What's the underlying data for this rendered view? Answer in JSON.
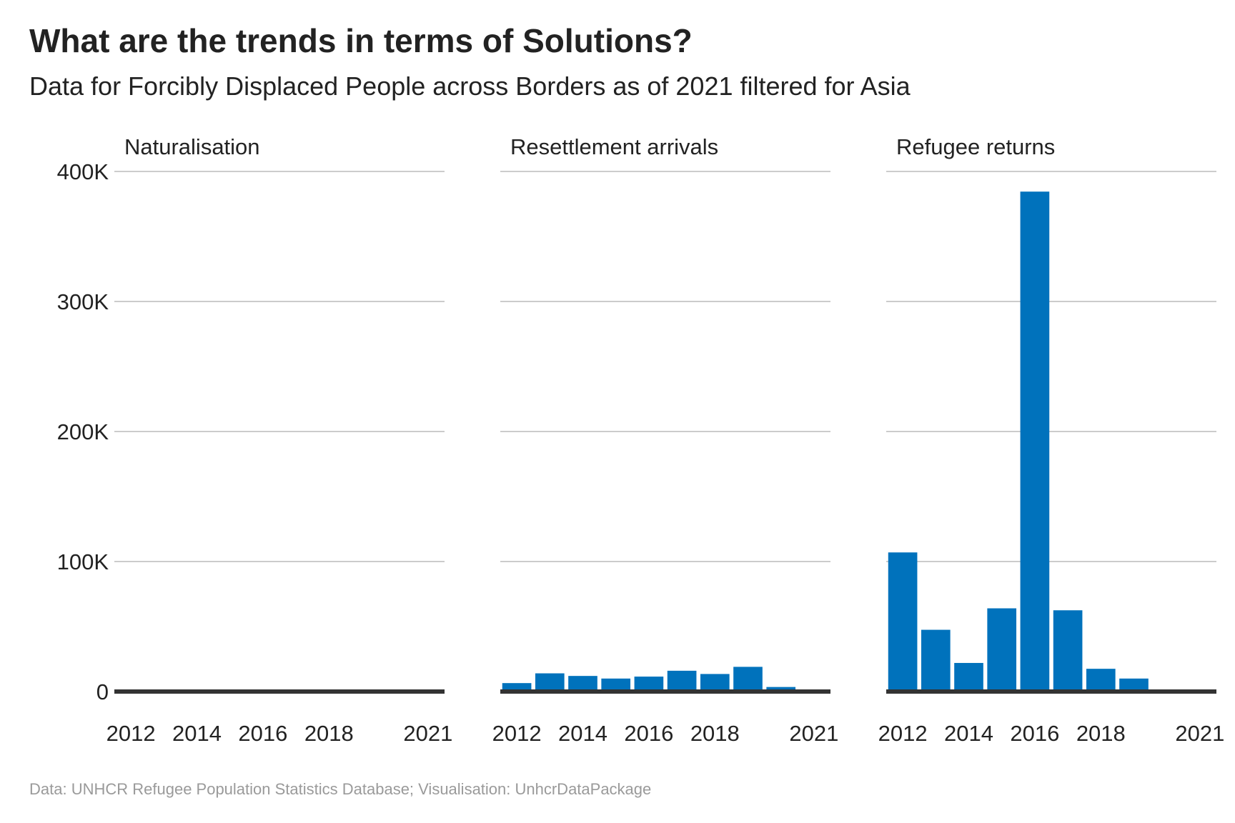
{
  "title": "What are the trends in terms of Solutions?",
  "subtitle": "Data for Forcibly Displaced People across Borders as of 2021 filtered for Asia",
  "caption": "Data: UNHCR Refugee Population Statistics Database; Visualisation: UnhcrDataPackage",
  "colors": {
    "bar": "#0072BC",
    "grid": "#cccccc",
    "baseline": "#333333"
  },
  "chart_data": {
    "type": "bar",
    "x": [
      2012,
      2013,
      2014,
      2015,
      2016,
      2017,
      2018,
      2019,
      2020,
      2021
    ],
    "x_tick_labels": [
      "2012",
      "2014",
      "2016",
      "2018",
      "2021"
    ],
    "x_tick_values": [
      2012,
      2014,
      2016,
      2018,
      2021
    ],
    "y_ticks": [
      0,
      100000,
      200000,
      300000,
      400000
    ],
    "y_tick_labels": [
      "0",
      "100K",
      "200K",
      "300K",
      "400K"
    ],
    "ylim": [
      0,
      400000
    ],
    "grid": true,
    "legend": "none",
    "facets": [
      {
        "name": "Naturalisation",
        "values": [
          0,
          0,
          0,
          0,
          0,
          0,
          0,
          0,
          0,
          0
        ]
      },
      {
        "name": "Resettlement arrivals",
        "values": [
          6500,
          14000,
          12000,
          10000,
          11500,
          16000,
          13500,
          19000,
          3500,
          300
        ]
      },
      {
        "name": "Refugee returns",
        "values": [
          107000,
          47500,
          22000,
          64000,
          384500,
          62500,
          17500,
          10000,
          1500,
          500
        ]
      }
    ]
  }
}
